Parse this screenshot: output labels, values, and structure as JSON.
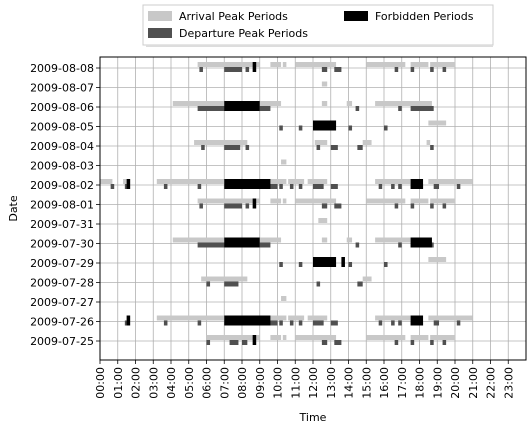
{
  "chart_data": {
    "type": "timeline",
    "xlabel": "Time",
    "ylabel": "Date",
    "x_ticks": [
      "00:00",
      "01:00",
      "02:00",
      "03:00",
      "04:00",
      "05:00",
      "06:00",
      "07:00",
      "08:00",
      "09:00",
      "10:00",
      "11:00",
      "12:00",
      "13:00",
      "14:00",
      "15:00",
      "16:00",
      "17:00",
      "18:00",
      "19:00",
      "20:00",
      "21:00",
      "22:00",
      "23:00"
    ],
    "xlim": [
      0,
      24
    ],
    "grid": true,
    "legend": {
      "placement": "top-center",
      "entries": [
        {
          "label": "Arrival Peak Periods",
          "color": "#c8c8c8"
        },
        {
          "label": "Departure Peak Periods",
          "color": "#505050"
        },
        {
          "label": "Forbidden Periods",
          "color": "#000000"
        }
      ]
    },
    "dates": [
      "2009-08-08",
      "2009-08-07",
      "2009-08-06",
      "2009-08-05",
      "2009-08-04",
      "2009-08-03",
      "2009-08-02",
      "2009-08-01",
      "2009-07-31",
      "2009-07-30",
      "2009-07-29",
      "2009-07-28",
      "2009-07-27",
      "2009-07-26",
      "2009-07-25"
    ],
    "series": [
      {
        "name": "Arrival Peak Periods",
        "color": "#c8c8c8",
        "rows": [
          [
            [
              5.5,
              9.0
            ],
            [
              9.6,
              10.2
            ],
            [
              10.3,
              10.5
            ],
            [
              11.0,
              13.3
            ],
            [
              15.0,
              17.2
            ],
            [
              17.5,
              18.5
            ],
            [
              18.6,
              20.0
            ]
          ],
          [
            [
              12.5,
              12.8
            ]
          ],
          [
            [
              4.1,
              10.2
            ],
            [
              12.5,
              12.8
            ],
            [
              13.9,
              14.2
            ],
            [
              15.5,
              18.7
            ]
          ],
          [
            [
              12.3,
              12.5
            ],
            [
              12.8,
              13.2
            ],
            [
              18.5,
              19.5
            ]
          ],
          [
            [
              5.3,
              8.3
            ],
            [
              12.1,
              12.8
            ],
            [
              14.8,
              15.3
            ],
            [
              18.4,
              18.6
            ]
          ],
          [
            [
              10.2,
              10.5
            ]
          ],
          [
            [
              0.0,
              0.7
            ],
            [
              1.3,
              1.5
            ],
            [
              3.2,
              10.5
            ],
            [
              10.6,
              11.5
            ],
            [
              11.7,
              12.8
            ],
            [
              15.5,
              17.8
            ],
            [
              18.5,
              21.0
            ]
          ],
          [
            [
              5.5,
              9.0
            ],
            [
              9.6,
              10.2
            ],
            [
              10.3,
              10.5
            ],
            [
              11.0,
              13.3
            ],
            [
              15.0,
              17.2
            ],
            [
              17.5,
              18.5
            ],
            [
              18.6,
              20.0
            ]
          ],
          [
            [
              12.3,
              12.8
            ]
          ],
          [
            [
              4.1,
              10.2
            ],
            [
              12.5,
              12.8
            ],
            [
              13.9,
              14.2
            ],
            [
              15.5,
              18.7
            ]
          ],
          [
            [
              12.3,
              12.5
            ],
            [
              12.8,
              13.2
            ],
            [
              18.5,
              19.5
            ]
          ],
          [
            [
              5.7,
              8.3
            ],
            [
              14.8,
              15.3
            ]
          ],
          [
            [
              10.2,
              10.5
            ]
          ],
          [
            [
              3.2,
              10.5
            ],
            [
              10.6,
              11.5
            ],
            [
              11.7,
              12.8
            ],
            [
              15.5,
              17.8
            ],
            [
              18.5,
              21.0
            ]
          ],
          [
            [
              6.0,
              9.0
            ],
            [
              9.6,
              10.2
            ],
            [
              10.3,
              10.5
            ],
            [
              11.0,
              13.3
            ],
            [
              15.0,
              17.2
            ],
            [
              17.5,
              18.5
            ],
            [
              18.6,
              20.0
            ]
          ]
        ]
      },
      {
        "name": "Departure Peak Periods",
        "color": "#505050",
        "rows": [
          [
            [
              5.6,
              5.8
            ],
            [
              7.0,
              8.0
            ],
            [
              8.2,
              8.4
            ],
            [
              12.5,
              12.8
            ],
            [
              13.2,
              13.6
            ],
            [
              16.6,
              16.8
            ],
            [
              17.5,
              17.7
            ],
            [
              18.6,
              18.8
            ],
            [
              19.3,
              19.5
            ]
          ],
          [],
          [
            [
              5.5,
              8.5
            ],
            [
              9.0,
              9.6
            ],
            [
              14.4,
              14.6
            ],
            [
              16.8,
              17.0
            ],
            [
              17.5,
              18.8
            ]
          ],
          [
            [
              10.1,
              10.3
            ],
            [
              11.2,
              11.4
            ],
            [
              12.1,
              12.3
            ],
            [
              14.0,
              14.2
            ],
            [
              16.0,
              16.2
            ]
          ],
          [
            [
              5.7,
              5.9
            ],
            [
              7.0,
              7.9
            ],
            [
              8.2,
              8.4
            ],
            [
              12.2,
              12.4
            ],
            [
              13.0,
              13.4
            ],
            [
              14.5,
              14.8
            ],
            [
              18.6,
              18.8
            ]
          ],
          [],
          [
            [
              0.6,
              0.8
            ],
            [
              1.4,
              1.6
            ],
            [
              3.6,
              3.8
            ],
            [
              5.5,
              5.7
            ],
            [
              8.0,
              10.0
            ],
            [
              10.1,
              10.3
            ],
            [
              10.7,
              10.9
            ],
            [
              11.2,
              11.4
            ],
            [
              12.0,
              12.6
            ],
            [
              13.0,
              13.4
            ],
            [
              15.7,
              15.9
            ],
            [
              16.4,
              16.6
            ],
            [
              16.8,
              17.0
            ],
            [
              17.5,
              18.2
            ],
            [
              18.8,
              19.1
            ],
            [
              20.1,
              20.3
            ]
          ],
          [
            [
              5.6,
              5.8
            ],
            [
              7.0,
              8.0
            ],
            [
              8.2,
              8.4
            ],
            [
              12.5,
              12.8
            ],
            [
              13.2,
              13.6
            ],
            [
              16.6,
              16.8
            ],
            [
              17.5,
              17.7
            ],
            [
              18.6,
              18.8
            ],
            [
              19.3,
              19.5
            ]
          ],
          [],
          [
            [
              5.5,
              8.5
            ],
            [
              9.0,
              9.6
            ],
            [
              14.4,
              14.6
            ],
            [
              16.8,
              17.0
            ],
            [
              17.5,
              18.8
            ]
          ],
          [
            [
              10.1,
              10.3
            ],
            [
              11.2,
              11.4
            ],
            [
              12.1,
              12.3
            ],
            [
              14.0,
              14.2
            ],
            [
              16.0,
              16.2
            ]
          ],
          [
            [
              6.0,
              6.2
            ],
            [
              7.0,
              7.8
            ],
            [
              12.2,
              12.4
            ],
            [
              14.5,
              14.8
            ]
          ],
          [],
          [
            [
              1.4,
              1.6
            ],
            [
              3.6,
              3.8
            ],
            [
              5.5,
              5.7
            ],
            [
              8.0,
              10.0
            ],
            [
              10.1,
              10.3
            ],
            [
              10.7,
              10.9
            ],
            [
              11.2,
              11.4
            ],
            [
              12.0,
              12.6
            ],
            [
              13.0,
              13.4
            ],
            [
              15.7,
              15.9
            ],
            [
              16.4,
              16.6
            ],
            [
              16.8,
              17.0
            ],
            [
              17.5,
              18.2
            ],
            [
              18.8,
              19.1
            ],
            [
              20.1,
              20.3
            ]
          ],
          [
            [
              6.0,
              6.2
            ],
            [
              7.3,
              7.8
            ],
            [
              8.0,
              8.3
            ],
            [
              12.5,
              12.8
            ],
            [
              13.2,
              13.6
            ],
            [
              16.6,
              16.8
            ],
            [
              17.5,
              17.7
            ],
            [
              18.6,
              18.8
            ],
            [
              19.3,
              19.5
            ]
          ]
        ]
      },
      {
        "name": "Forbidden Periods",
        "color": "#000000",
        "rows": [
          [
            [
              8.6,
              8.8
            ]
          ],
          [],
          [
            [
              7.0,
              9.0
            ]
          ],
          [
            [
              12.0,
              13.3
            ]
          ],
          [],
          [],
          [
            [
              1.5,
              1.7
            ],
            [
              7.0,
              9.6
            ],
            [
              17.5,
              18.2
            ]
          ],
          [
            [
              8.6,
              8.8
            ]
          ],
          [],
          [
            [
              7.0,
              9.0
            ],
            [
              17.5,
              18.7
            ]
          ],
          [
            [
              12.0,
              13.3
            ],
            [
              13.6,
              13.8
            ]
          ],
          [],
          [],
          [
            [
              1.5,
              1.7
            ],
            [
              7.0,
              9.6
            ],
            [
              17.5,
              18.2
            ]
          ],
          [
            [
              8.6,
              8.8
            ]
          ]
        ]
      }
    ]
  }
}
